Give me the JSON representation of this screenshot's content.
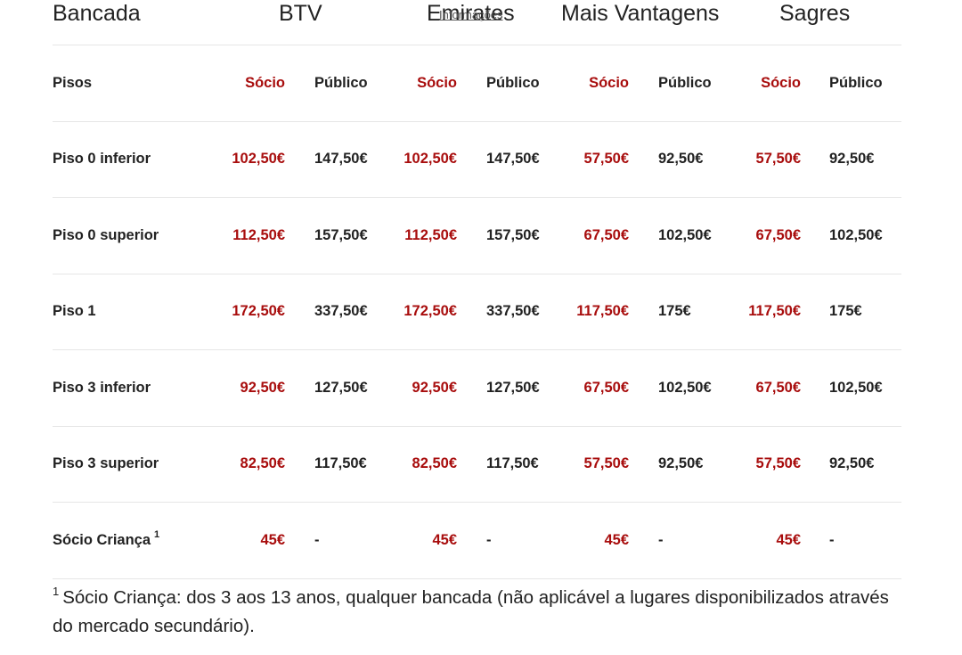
{
  "header": {
    "bancada": "Bancada",
    "stands": [
      "BTV",
      "Emirates",
      "Mais Vantagens",
      "Sagres"
    ],
    "overlay_link": "Informações"
  },
  "subheader": {
    "pisos": "Pisos",
    "socio": "Sócio",
    "publico": "Público"
  },
  "rows": [
    {
      "label": "Piso 0 inferior",
      "values": [
        "102,50€",
        "147,50€",
        "102,50€",
        "147,50€",
        "57,50€",
        "92,50€",
        "57,50€",
        "92,50€"
      ]
    },
    {
      "label": "Piso 0 superior",
      "values": [
        "112,50€",
        "157,50€",
        "112,50€",
        "157,50€",
        "67,50€",
        "102,50€",
        "67,50€",
        "102,50€"
      ]
    },
    {
      "label": "Piso 1",
      "values": [
        "172,50€",
        "337,50€",
        "172,50€",
        "337,50€",
        "117,50€",
        "175€",
        "117,50€",
        "175€"
      ]
    },
    {
      "label": "Piso 3 inferior",
      "values": [
        "92,50€",
        "127,50€",
        "92,50€",
        "127,50€",
        "67,50€",
        "102,50€",
        "67,50€",
        "102,50€"
      ]
    },
    {
      "label": "Piso 3 superior",
      "values": [
        "82,50€",
        "117,50€",
        "82,50€",
        "117,50€",
        "57,50€",
        "92,50€",
        "57,50€",
        "92,50€"
      ]
    },
    {
      "label": "Sócio Criança",
      "note": "1",
      "values": [
        "45€",
        "-",
        "45€",
        "-",
        "45€",
        "-",
        "45€",
        "-"
      ]
    }
  ],
  "footnote": {
    "marker": "1",
    "text": "Sócio Criança: dos 3 aos 13 anos, qualquer bancada (não aplicável a lugares disponibilizados através do mercado secundário)."
  },
  "colors": {
    "socio": "#a80d0d",
    "text": "#222222",
    "divider": "#e6e6e6"
  }
}
